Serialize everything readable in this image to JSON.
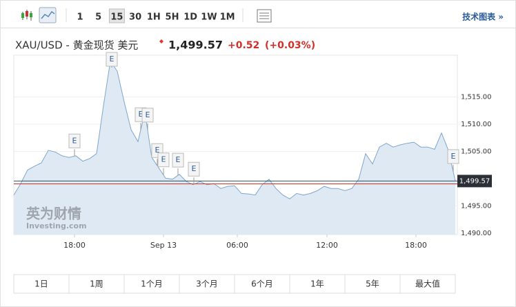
{
  "toolbar": {
    "intervals": [
      "1",
      "5",
      "15",
      "30",
      "1H",
      "5H",
      "1D",
      "1W",
      "1M"
    ],
    "selected_interval": 2,
    "link": "技术图表 »"
  },
  "header": {
    "instrument": "XAU/USD - 黄金现货 美元",
    "price": "1,499.57",
    "change": "+0.52",
    "change_pct": "(+0.03%)"
  },
  "chart_data": {
    "type": "area",
    "color": "#7ea6cc",
    "fill": "#dfe9f4",
    "values": [
      1497.0,
      1499.1,
      1501.6,
      1502.3,
      1502.9,
      1505.2,
      1504.9,
      1504.2,
      1503.9,
      1504.2,
      1503.2,
      1503.7,
      1504.6,
      1513.4,
      1521.6,
      1519.7,
      1514.1,
      1509.0,
      1506.8,
      1512.2,
      1503.9,
      1502.0,
      1500.1,
      1499.9,
      1500.8,
      1499.5,
      1498.9,
      1499.5,
      1498.9,
      1499.1,
      1498.2,
      1498.6,
      1498.7,
      1497.3,
      1497.2,
      1497.0,
      1498.9,
      1499.9,
      1498.2,
      1497.0,
      1496.3,
      1497.3,
      1497.0,
      1497.3,
      1497.8,
      1498.6,
      1498.2,
      1498.2,
      1497.8,
      1498.2,
      1499.9,
      1504.6,
      1502.7,
      1505.8,
      1506.5,
      1505.8,
      1506.2,
      1506.5,
      1506.7,
      1505.8,
      1505.8,
      1505.4,
      1508.4,
      1505.2,
      1499.6
    ],
    "xlim": [
      0,
      64
    ],
    "xticks": [
      {
        "value": 8.8,
        "label": "18:00"
      },
      {
        "value": 21.7,
        "label": "Sep 13"
      },
      {
        "value": 32.4,
        "label": "06:00"
      },
      {
        "value": 45.4,
        "label": "12:00"
      },
      {
        "value": 58.3,
        "label": "18:00"
      }
    ],
    "ylim": [
      1489.75,
      1522.66
    ],
    "yticks": [
      {
        "value": 1490,
        "label": "1,490.00"
      },
      {
        "value": 1495,
        "label": "1,495.00"
      },
      {
        "value": 1505,
        "label": "1,505.00"
      },
      {
        "value": 1510,
        "label": "1,510.00"
      },
      {
        "value": 1515,
        "label": "1,515.00"
      }
    ],
    "current_price": {
      "value": 1499.57,
      "label": "1,499.57"
    },
    "previous_close": 1499.05,
    "events": [
      {
        "x": 8.8,
        "label": "E"
      },
      {
        "x": 14.2,
        "label": "E"
      },
      {
        "x": 18.4,
        "label": "E"
      },
      {
        "x": 19.4,
        "label": "E"
      },
      {
        "x": 20.8,
        "label": "E"
      },
      {
        "x": 21.7,
        "label": "E"
      },
      {
        "x": 23.8,
        "label": "E"
      },
      {
        "x": 26.1,
        "label": "E"
      },
      {
        "x": 63.7,
        "label": "E"
      }
    ],
    "watermark": {
      "title": "英为财情",
      "subtitle": "Investing.com"
    }
  },
  "ranges": [
    "1日",
    "1周",
    "1个月",
    "3个月",
    "6个月",
    "1年",
    "5年",
    "最大值"
  ]
}
